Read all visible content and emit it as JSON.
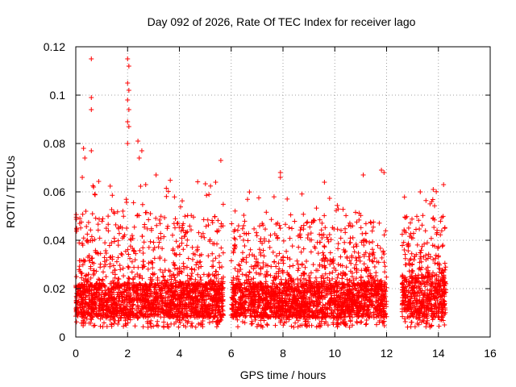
{
  "chart_data": {
    "type": "scatter",
    "title": "Day 092 of 2026, Rate Of TEC Index for receiver lago",
    "xlabel": "GPS time / hours",
    "ylabel": "ROTI / TECUs",
    "xlim": [
      0,
      16
    ],
    "ylim": [
      0,
      0.12
    ],
    "xticks": [
      0,
      2,
      4,
      6,
      8,
      10,
      12,
      14,
      16
    ],
    "yticks": [
      0,
      0.02,
      0.04,
      0.06,
      0.08,
      0.1,
      0.12
    ],
    "xtick_labels": [
      "0",
      "2",
      "4",
      "6",
      "8",
      "10",
      "12",
      "14",
      "16"
    ],
    "ytick_labels": [
      "0",
      "0.02",
      "0.04",
      "0.06",
      "0.08",
      "0.1",
      "0.12"
    ],
    "grid": true,
    "marker": "plus",
    "series_color": "#ff0000",
    "density": {
      "description": "Dense scatter of many ROTI samples; points summarised per time segment",
      "segments": [
        {
          "x_start": 0.0,
          "x_end": 5.7,
          "core_low": 0.008,
          "core_high": 0.022,
          "spread_high": 0.065
        },
        {
          "x_start": 6.0,
          "x_end": 12.0,
          "core_low": 0.008,
          "core_high": 0.022,
          "spread_high": 0.06
        },
        {
          "x_start": 12.6,
          "x_end": 14.3,
          "core_low": 0.008,
          "core_high": 0.025,
          "spread_high": 0.062
        }
      ],
      "gap_hours": [
        [
          5.7,
          6.0
        ],
        [
          12.0,
          12.6
        ]
      ]
    },
    "peaks": [
      {
        "x": 0.6,
        "y": 0.115
      },
      {
        "x": 0.6,
        "y": 0.099
      },
      {
        "x": 0.6,
        "y": 0.094
      },
      {
        "x": 0.3,
        "y": 0.078
      },
      {
        "x": 0.35,
        "y": 0.074
      },
      {
        "x": 0.6,
        "y": 0.077
      },
      {
        "x": 0.25,
        "y": 0.066
      },
      {
        "x": 2.0,
        "y": 0.115
      },
      {
        "x": 2.05,
        "y": 0.112
      },
      {
        "x": 2.0,
        "y": 0.105
      },
      {
        "x": 2.05,
        "y": 0.102
      },
      {
        "x": 2.0,
        "y": 0.098
      },
      {
        "x": 2.05,
        "y": 0.094
      },
      {
        "x": 2.0,
        "y": 0.089
      },
      {
        "x": 2.05,
        "y": 0.087
      },
      {
        "x": 2.0,
        "y": 0.08
      },
      {
        "x": 2.4,
        "y": 0.081
      },
      {
        "x": 2.45,
        "y": 0.074
      },
      {
        "x": 2.55,
        "y": 0.077
      },
      {
        "x": 2.7,
        "y": 0.063
      },
      {
        "x": 3.1,
        "y": 0.067
      },
      {
        "x": 5.6,
        "y": 0.073
      },
      {
        "x": 5.4,
        "y": 0.064
      },
      {
        "x": 7.9,
        "y": 0.068
      },
      {
        "x": 7.9,
        "y": 0.066
      },
      {
        "x": 9.6,
        "y": 0.064
      },
      {
        "x": 11.1,
        "y": 0.067
      },
      {
        "x": 11.8,
        "y": 0.069
      },
      {
        "x": 11.9,
        "y": 0.068
      },
      {
        "x": 13.3,
        "y": 0.06
      },
      {
        "x": 13.8,
        "y": 0.061
      },
      {
        "x": 14.2,
        "y": 0.063
      }
    ]
  }
}
